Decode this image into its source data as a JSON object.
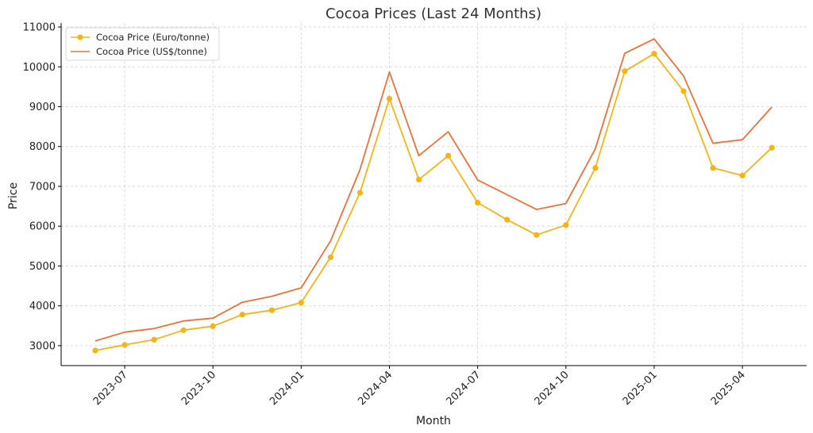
{
  "chart_data": {
    "type": "line",
    "title": "Cocoa Prices (Last 24 Months)",
    "xlabel": "Month",
    "ylabel": "Price",
    "x": [
      "2023-06",
      "2023-07",
      "2023-08",
      "2023-09",
      "2023-10",
      "2023-11",
      "2023-12",
      "2024-01",
      "2024-02",
      "2024-03",
      "2024-04",
      "2024-05",
      "2024-06",
      "2024-07",
      "2024-08",
      "2024-09",
      "2024-10",
      "2024-11",
      "2024-12",
      "2025-01",
      "2025-02",
      "2025-03",
      "2025-04",
      "2025-05"
    ],
    "x_ticks": [
      "2023-07",
      "2023-10",
      "2024-01",
      "2024-04",
      "2024-07",
      "2024-10",
      "2025-01",
      "2025-04"
    ],
    "y_ticks": [
      3000,
      4000,
      5000,
      6000,
      7000,
      8000,
      9000,
      10000,
      11000
    ],
    "ylim": [
      2500,
      11100
    ],
    "grid": true,
    "legend_position": "top-left",
    "series": [
      {
        "name": "Cocoa Price (Euro/tonne)",
        "color": "#f5b315",
        "marker": "circle",
        "values": [
          2880,
          3020,
          3150,
          3390,
          3490,
          3780,
          3890,
          4080,
          5220,
          6840,
          9200,
          7170,
          7770,
          6590,
          6160,
          5780,
          6030,
          7460,
          9890,
          10330,
          9390,
          7460,
          7270,
          7970
        ]
      },
      {
        "name": "Cocoa Price (US$/tonne)",
        "color": "#ec7236",
        "marker": "none",
        "values": [
          3120,
          3340,
          3430,
          3620,
          3690,
          4090,
          4240,
          4450,
          5630,
          7420,
          9870,
          7770,
          8370,
          7160,
          6790,
          6420,
          6570,
          7940,
          10340,
          10700,
          9770,
          8080,
          8170,
          8990
        ]
      }
    ]
  }
}
